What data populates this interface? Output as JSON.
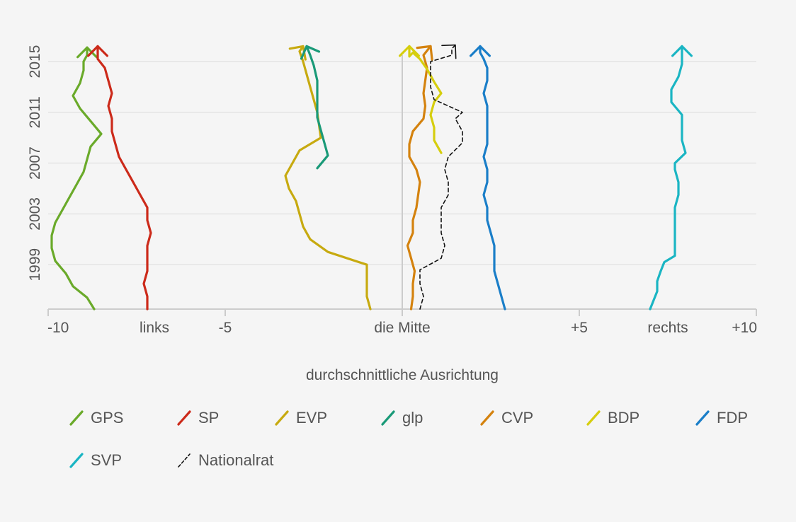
{
  "chart_data": {
    "type": "line",
    "xlabel": "durchschnittliche Ausrichtung",
    "ylabel": "",
    "xlim": [
      -10,
      10
    ],
    "ylim": [
      1995.5,
      2016.5
    ],
    "x_ticks": [
      {
        "value": -10,
        "label": "-10"
      },
      {
        "value": -7,
        "label": "links"
      },
      {
        "value": -5,
        "label": "-5"
      },
      {
        "value": 0,
        "label": "die Mitte"
      },
      {
        "value": 5,
        "label": "+5"
      },
      {
        "value": 7.5,
        "label": "rechts"
      },
      {
        "value": 10,
        "label": "+10"
      }
    ],
    "y_ticks": [
      {
        "value": 1999,
        "label": "1999"
      },
      {
        "value": 2003,
        "label": "2003"
      },
      {
        "value": 2007,
        "label": "2007"
      },
      {
        "value": 2011,
        "label": "2011"
      },
      {
        "value": 2015,
        "label": "2015"
      }
    ],
    "grid": true,
    "legend_position": "bottom",
    "series": [
      {
        "name": "GPS",
        "color": "#6aaa2a",
        "dashed": false,
        "x": [
          -8.7,
          -8.9,
          -9.3,
          -9.5,
          -9.8,
          -9.9,
          -9.9,
          -9.8,
          -9.6,
          -9.4,
          -9.2,
          -9.0,
          -8.9,
          -8.8,
          -8.5,
          -8.8,
          -9.1,
          -9.3,
          -9.1,
          -9.0,
          -9.0,
          -8.9,
          -8.9,
          -8.9
        ],
        "y": [
          1995.5,
          1996.4,
          1997.3,
          1998.3,
          1999.3,
          2000.3,
          2001.3,
          2002.3,
          2003.3,
          2004.3,
          2005.3,
          2006.3,
          2007.3,
          2008.3,
          2009.3,
          2010.3,
          2011.3,
          2012.3,
          2013.3,
          2014.3,
          2015.0,
          2015.5,
          2015.8,
          2016.1
        ]
      },
      {
        "name": "SP",
        "color": "#cc2a1a",
        "dashed": false,
        "x": [
          -7.2,
          -7.2,
          -7.3,
          -7.2,
          -7.2,
          -7.2,
          -7.1,
          -7.2,
          -7.2,
          -7.4,
          -7.6,
          -7.8,
          -8.0,
          -8.1,
          -8.2,
          -8.2,
          -8.3,
          -8.2,
          -8.3,
          -8.4,
          -8.6,
          -8.6,
          -8.6
        ],
        "y": [
          1995.5,
          1996.5,
          1997.5,
          1998.5,
          1999.5,
          2000.5,
          2001.5,
          2002.5,
          2003.5,
          2004.5,
          2005.5,
          2006.5,
          2007.5,
          2008.5,
          2009.5,
          2010.5,
          2011.5,
          2012.5,
          2013.5,
          2014.5,
          2015.2,
          2015.7,
          2016.2
        ]
      },
      {
        "name": "EVP",
        "color": "#c7aa10",
        "dashed": false,
        "x": [
          -0.9,
          -1.0,
          -1.0,
          -1.0,
          -1.0,
          -2.1,
          -2.6,
          -2.8,
          -2.9,
          -3.0,
          -3.2,
          -3.3,
          -2.9,
          -2.3,
          -2.4,
          -2.5,
          -2.6,
          -2.7,
          -2.8,
          -2.9,
          -2.8
        ],
        "y": [
          1995.5,
          1996.5,
          1997.5,
          1998.5,
          1999.0,
          2000.0,
          2001.0,
          2002.0,
          2003.0,
          2004.0,
          2005.0,
          2006.0,
          2008.0,
          2009.0,
          2011.0,
          2012.0,
          2013.0,
          2014.0,
          2015.0,
          2015.8,
          2016.2
        ]
      },
      {
        "name": "glp",
        "color": "#1a9a78",
        "dashed": false,
        "x": [
          -2.4,
          -2.1,
          -2.3,
          -2.4,
          -2.4,
          -2.4,
          -2.5,
          -2.6,
          -2.7
        ],
        "y": [
          2006.6,
          2007.6,
          2009.6,
          2010.6,
          2012.0,
          2013.5,
          2014.7,
          2015.5,
          2016.2
        ]
      },
      {
        "name": "CVP",
        "color": "#d4820e",
        "dashed": false,
        "x": [
          0.25,
          0.3,
          0.3,
          0.35,
          0.25,
          0.15,
          0.3,
          0.3,
          0.4,
          0.5,
          0.4,
          0.2,
          0.2,
          0.3,
          0.6,
          0.65,
          0.6,
          0.65,
          0.7,
          0.6,
          0.8
        ],
        "y": [
          1995.5,
          1996.5,
          1997.5,
          1998.5,
          1999.5,
          2000.5,
          2001.5,
          2002.5,
          2003.5,
          2005.5,
          2006.5,
          2007.5,
          2008.5,
          2009.5,
          2010.5,
          2011.5,
          2012.5,
          2013.5,
          2014.5,
          2015.5,
          2016.2
        ]
      },
      {
        "name": "BDP",
        "color": "#d6ce0e",
        "dashed": false,
        "x": [
          1.1,
          0.9,
          0.9,
          0.8,
          0.9,
          1.1,
          0.9,
          0.7,
          0.5,
          0.3,
          0.2,
          0.2
        ],
        "y": [
          2007.8,
          2008.8,
          2009.8,
          2010.8,
          2011.8,
          2012.5,
          2013.4,
          2014.4,
          2015.2,
          2015.7,
          2015.4,
          2016.2
        ]
      },
      {
        "name": "FDP",
        "color": "#1a7ec8",
        "dashed": false,
        "x": [
          2.9,
          2.8,
          2.7,
          2.6,
          2.6,
          2.6,
          2.5,
          2.4,
          2.4,
          2.3,
          2.4,
          2.4,
          2.3,
          2.4,
          2.4,
          2.4,
          2.4,
          2.3,
          2.4,
          2.4,
          2.3,
          2.2,
          2.2
        ],
        "y": [
          1995.5,
          1996.5,
          1997.5,
          1998.5,
          1999.5,
          2000.5,
          2001.5,
          2002.5,
          2003.5,
          2004.5,
          2005.5,
          2006.5,
          2007.5,
          2008.5,
          2009.5,
          2010.5,
          2011.5,
          2012.5,
          2013.5,
          2014.5,
          2015.2,
          2015.7,
          2016.2
        ]
      },
      {
        "name": "SVP",
        "color": "#1ab5c3",
        "dashed": false,
        "x": [
          7.0,
          7.1,
          7.2,
          7.2,
          7.3,
          7.4,
          7.7,
          7.7,
          7.7,
          7.7,
          7.7,
          7.8,
          7.8,
          7.7,
          7.7,
          8.0,
          7.9,
          7.9,
          7.9,
          7.6,
          7.6,
          7.8,
          7.9,
          7.9
        ],
        "y": [
          1995.5,
          1996.2,
          1996.9,
          1997.7,
          1998.5,
          1999.2,
          1999.7,
          2000.5,
          2001.5,
          2002.5,
          2003.5,
          2004.5,
          2005.5,
          2006.5,
          2007.0,
          2007.8,
          2008.8,
          2009.8,
          2010.8,
          2011.8,
          2012.8,
          2013.8,
          2014.8,
          2016.2
        ]
      },
      {
        "name": "Nationalrat",
        "color": "#111111",
        "dashed": true,
        "x": [
          0.5,
          0.6,
          0.5,
          0.5,
          1.1,
          1.2,
          1.1,
          1.1,
          1.1,
          1.3,
          1.3,
          1.2,
          1.3,
          1.7,
          1.7,
          1.5,
          1.7,
          0.9,
          0.8,
          0.8,
          0.8,
          1.4,
          1.4,
          1.5
        ],
        "y": [
          1995.5,
          1996.5,
          1997.5,
          1998.6,
          1999.5,
          2000.5,
          2001.5,
          2002.5,
          2003.5,
          2004.5,
          2005.5,
          2006.5,
          2007.5,
          2008.6,
          2009.5,
          2010.5,
          2011.0,
          2012.0,
          2013.0,
          2014.0,
          2015.0,
          2015.5,
          2016.0,
          2016.3
        ]
      }
    ]
  }
}
